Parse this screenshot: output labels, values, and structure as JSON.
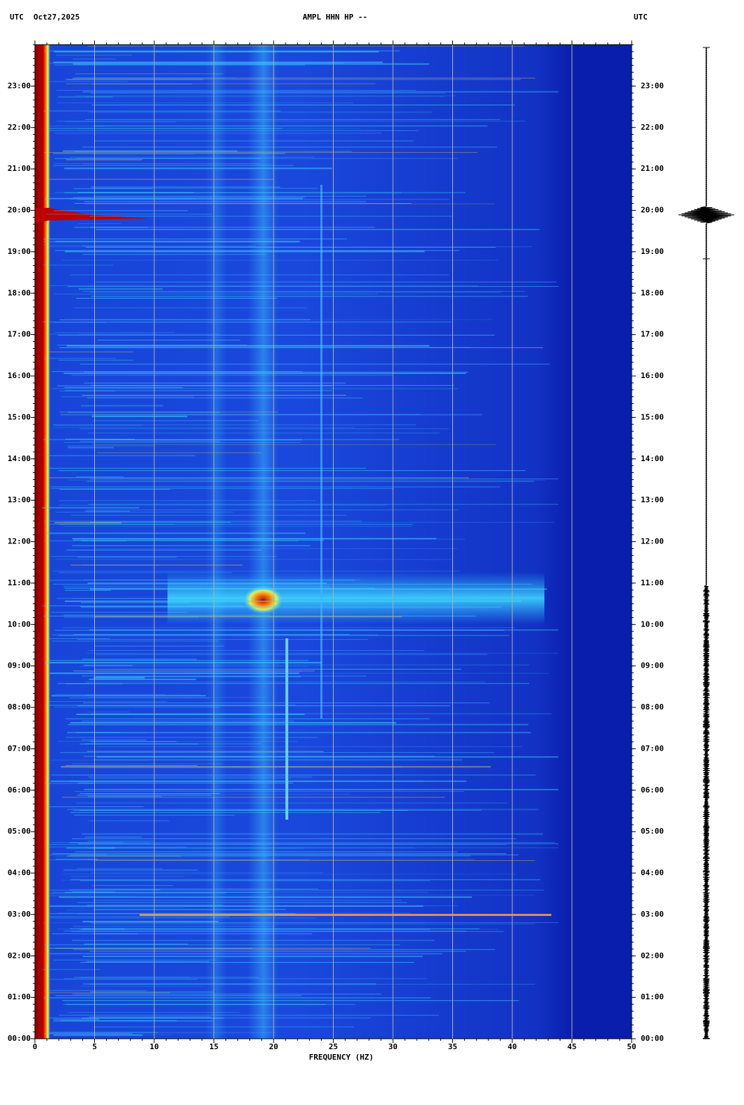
{
  "chart_data": {
    "type": "spectrogram",
    "timezone_left": "UTC",
    "date": "Oct27,2025",
    "title": "AMPL HHN HP --",
    "timezone_right": "UTC",
    "xlabel": "FREQUENCY (HZ)",
    "xlim": [
      0,
      50
    ],
    "xticks": [
      0,
      5,
      10,
      15,
      20,
      25,
      30,
      35,
      40,
      45,
      50
    ],
    "ylim": [
      0,
      24
    ],
    "yticks": [
      {
        "value": 0,
        "label": "00:00"
      },
      {
        "value": 1,
        "label": "01:00"
      },
      {
        "value": 2,
        "label": "02:00"
      },
      {
        "value": 3,
        "label": "03:00"
      },
      {
        "value": 4,
        "label": "04:00"
      },
      {
        "value": 5,
        "label": "05:00"
      },
      {
        "value": 6,
        "label": "06:00"
      },
      {
        "value": 7,
        "label": "07:00"
      },
      {
        "value": 8,
        "label": "08:00"
      },
      {
        "value": 9,
        "label": "09:00"
      },
      {
        "value": 10,
        "label": "10:00"
      },
      {
        "value": 11,
        "label": "11:00"
      },
      {
        "value": 12,
        "label": "12:00"
      },
      {
        "value": 13,
        "label": "13:00"
      },
      {
        "value": 14,
        "label": "14:00"
      },
      {
        "value": 15,
        "label": "15:00"
      },
      {
        "value": 16,
        "label": "16:00"
      },
      {
        "value": 17,
        "label": "17:00"
      },
      {
        "value": 18,
        "label": "18:00"
      },
      {
        "value": 19,
        "label": "19:00"
      },
      {
        "value": 20,
        "label": "20:00"
      },
      {
        "value": 21,
        "label": "21:00"
      },
      {
        "value": 22,
        "label": "22:00"
      },
      {
        "value": 23,
        "label": "23:00"
      }
    ],
    "grid": true
  }
}
